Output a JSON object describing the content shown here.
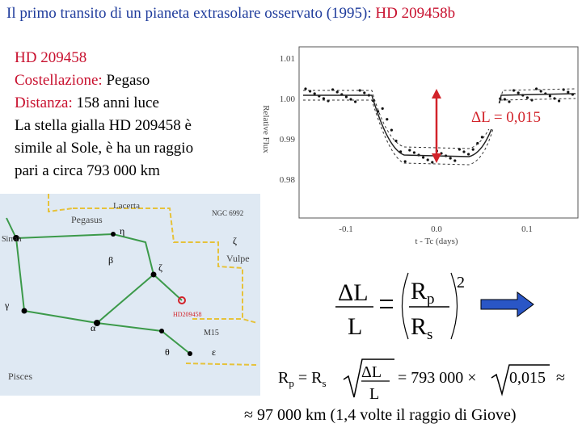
{
  "title": {
    "text": "Il primo transito di un pianeta extrasolare osservato (1995): ",
    "highlight": "HD 209458b"
  },
  "info": {
    "star": "HD 209458",
    "constellation_label": "Costellazione:",
    "constellation": " Pegaso",
    "distance_label": "Distanza:",
    "distance": " 158 anni luce",
    "description": [
      "La stella gialla HD 209458 è",
      "simile al Sole, è ha un raggio",
      "pari a circa 793 000 km"
    ]
  },
  "light_curve": {
    "y_label": "Relative Flux",
    "x_label": "t - Tc (days)",
    "y_tick_labels": [
      "1.01",
      "1.00",
      "0.99",
      "0.98"
    ],
    "x_tick_labels": [
      "-0.1",
      "0.0",
      "0.1"
    ],
    "annotation": "ΔL = 0,015"
  },
  "star_map": {
    "labels": [
      "Lacerta",
      "Pegasus",
      "NGC 6992",
      "Sirrah",
      "Vulpe",
      "HD209458",
      "M15",
      "Pisces"
    ],
    "greek": [
      "η",
      "β",
      "γ",
      "α",
      "ζ",
      "θ",
      "ε",
      "ζ"
    ]
  },
  "formula": {
    "delta_l": "ΔL",
    "l": "L",
    "r": "R",
    "sub_p": "p",
    "sub_s": "s",
    "power": "2",
    "line2": {
      "r": "R",
      "sub_p": "p",
      "eq_r": " = R",
      "sub_s": "s",
      "delta_l": "ΔL",
      "l": "L",
      "eq": "= 793 000 ×",
      "value": "0,015",
      "approx": "≈"
    },
    "line3": "≈ 97 000 km  (1,4 volte il raggio di Giove)"
  }
}
